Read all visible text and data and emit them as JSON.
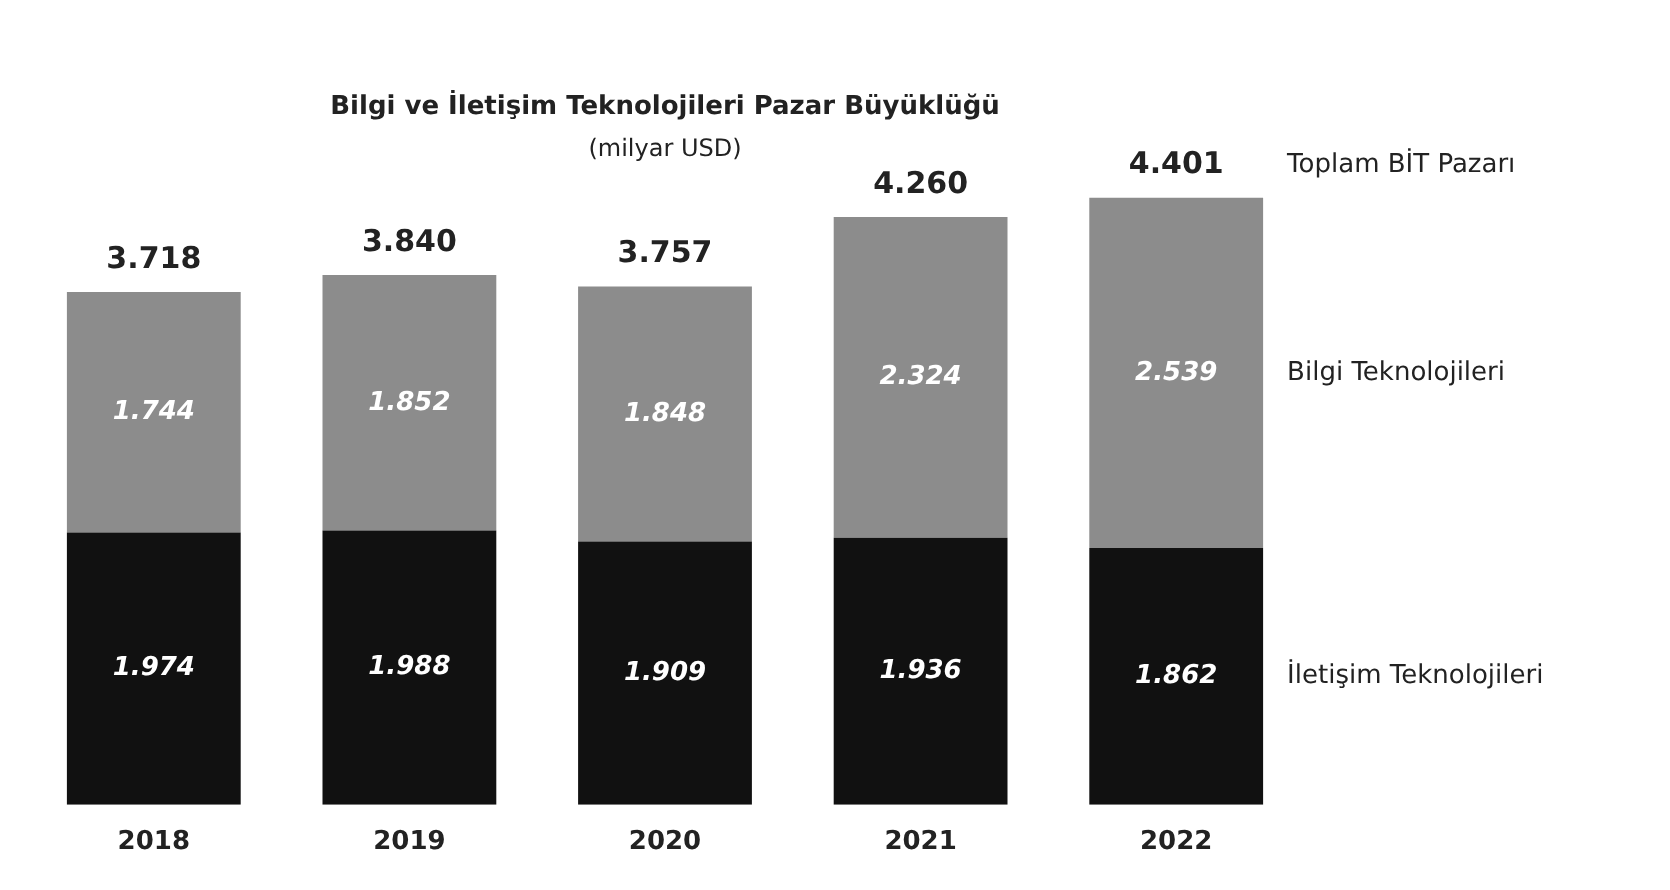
{
  "chart_data": {
    "type": "bar",
    "title": "Bilgi ve İletişim Teknolojileri Pazar Büyüklüğü",
    "subtitle": "(milyar USD)",
    "categories": [
      "2018",
      "2019",
      "2020",
      "2021",
      "2022"
    ],
    "stacked": true,
    "series": [
      {
        "name": "İletişim Teknolojileri",
        "color": "#111111",
        "values": [
          1974,
          1988,
          1909,
          1936,
          1862
        ],
        "value_labels": [
          "1.974",
          "1.988",
          "1.909",
          "1.936",
          "1.862"
        ]
      },
      {
        "name": "Bilgi Teknolojileri",
        "color": "#8c8c8c",
        "values": [
          1744,
          1852,
          1848,
          2324,
          2539
        ],
        "value_labels": [
          "1.744",
          "1.852",
          "1.848",
          "2.324",
          "2.539"
        ]
      }
    ],
    "totals": [
      "3.718",
      "3.840",
      "3.757",
      "4.260",
      "4.401"
    ],
    "annotations": [
      "Toplam BİT Pazarı"
    ],
    "legend": false,
    "grid": false
  }
}
